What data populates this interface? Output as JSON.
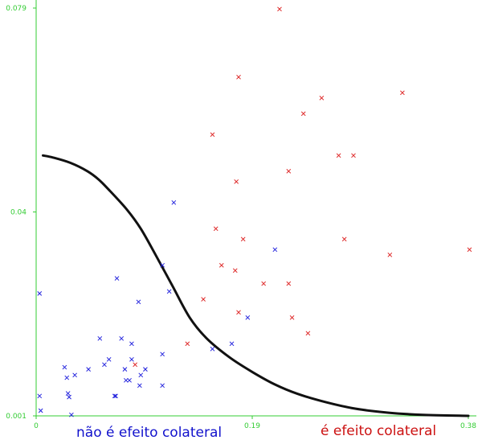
{
  "chart_data": {
    "type": "scatter",
    "title": "",
    "xlabel": "",
    "ylabel": "",
    "xlim": [
      0,
      0.38
    ],
    "ylim": [
      0.001,
      0.079
    ],
    "x_ticks": [
      {
        "value": 0,
        "label": "0"
      },
      {
        "value": 0.19,
        "label": "0.19"
      },
      {
        "value": 0.38,
        "label": "0.38"
      }
    ],
    "y_ticks": [
      {
        "value": 0.001,
        "label": "0.001"
      },
      {
        "value": 0.04,
        "label": "0.04"
      },
      {
        "value": 0.079,
        "label": "0.079"
      }
    ],
    "grid": false,
    "marker": "x",
    "series": [
      {
        "name": "não é efeito colateral",
        "color": "#2222dd",
        "points": [
          [
            0.003,
            0.0244
          ],
          [
            0.003,
            0.0048
          ],
          [
            0.004,
            0.002
          ],
          [
            0.025,
            0.0103
          ],
          [
            0.027,
            0.0083
          ],
          [
            0.028,
            0.0053
          ],
          [
            0.029,
            0.0046
          ],
          [
            0.031,
            0.0012
          ],
          [
            0.034,
            0.0088
          ],
          [
            0.046,
            0.0099
          ],
          [
            0.056,
            0.0158
          ],
          [
            0.06,
            0.0108
          ],
          [
            0.064,
            0.0118
          ],
          [
            0.069,
            0.0048
          ],
          [
            0.07,
            0.0048
          ],
          [
            0.071,
            0.0273
          ],
          [
            0.075,
            0.0158
          ],
          [
            0.078,
            0.0099
          ],
          [
            0.079,
            0.0078
          ],
          [
            0.082,
            0.0078
          ],
          [
            0.084,
            0.0148
          ],
          [
            0.084,
            0.0118
          ],
          [
            0.09,
            0.0228
          ],
          [
            0.091,
            0.0068
          ],
          [
            0.092,
            0.0088
          ],
          [
            0.096,
            0.0099
          ],
          [
            0.111,
            0.0128
          ],
          [
            0.111,
            0.0298
          ],
          [
            0.111,
            0.0068
          ],
          [
            0.117,
            0.0248
          ],
          [
            0.121,
            0.0418
          ],
          [
            0.155,
            0.0138
          ],
          [
            0.172,
            0.0148
          ],
          [
            0.186,
            0.0198
          ],
          [
            0.21,
            0.0328
          ]
        ]
      },
      {
        "name": "é efeito colateral",
        "color": "#dd2222",
        "points": [
          [
            0.087,
            0.0108
          ],
          [
            0.133,
            0.0148
          ],
          [
            0.147,
            0.0233
          ],
          [
            0.155,
            0.0548
          ],
          [
            0.158,
            0.0368
          ],
          [
            0.163,
            0.0298
          ],
          [
            0.175,
            0.0288
          ],
          [
            0.176,
            0.0458
          ],
          [
            0.178,
            0.0208
          ],
          [
            0.178,
            0.0658
          ],
          [
            0.182,
            0.0348
          ],
          [
            0.2,
            0.0263
          ],
          [
            0.214,
            0.0788
          ],
          [
            0.222,
            0.0263
          ],
          [
            0.222,
            0.0478
          ],
          [
            0.225,
            0.0198
          ],
          [
            0.235,
            0.0588
          ],
          [
            0.239,
            0.0168
          ],
          [
            0.251,
            0.0618
          ],
          [
            0.266,
            0.0508
          ],
          [
            0.271,
            0.0348
          ],
          [
            0.279,
            0.0508
          ],
          [
            0.311,
            0.0318
          ],
          [
            0.322,
            0.0628
          ],
          [
            0.381,
            0.0328
          ]
        ]
      }
    ],
    "boundary_curve": [
      [
        0.006,
        0.0508
      ],
      [
        0.015,
        0.0504
      ],
      [
        0.03,
        0.0494
      ],
      [
        0.045,
        0.0478
      ],
      [
        0.055,
        0.0462
      ],
      [
        0.065,
        0.044
      ],
      [
        0.08,
        0.0404
      ],
      [
        0.092,
        0.0368
      ],
      [
        0.105,
        0.0318
      ],
      [
        0.12,
        0.0258
      ],
      [
        0.135,
        0.0198
      ],
      [
        0.15,
        0.0158
      ],
      [
        0.17,
        0.0122
      ],
      [
        0.19,
        0.0094
      ],
      [
        0.21,
        0.007
      ],
      [
        0.23,
        0.0052
      ],
      [
        0.255,
        0.0036
      ],
      [
        0.28,
        0.0024
      ],
      [
        0.31,
        0.0016
      ],
      [
        0.34,
        0.0012
      ],
      [
        0.38,
        0.001
      ]
    ],
    "legend": [
      {
        "text": "não é efeito colateral",
        "color": "#1111cc",
        "position": "bottom-left"
      },
      {
        "text": "é efeito colateral",
        "color": "#cc1111",
        "position": "bottom-right"
      }
    ]
  }
}
